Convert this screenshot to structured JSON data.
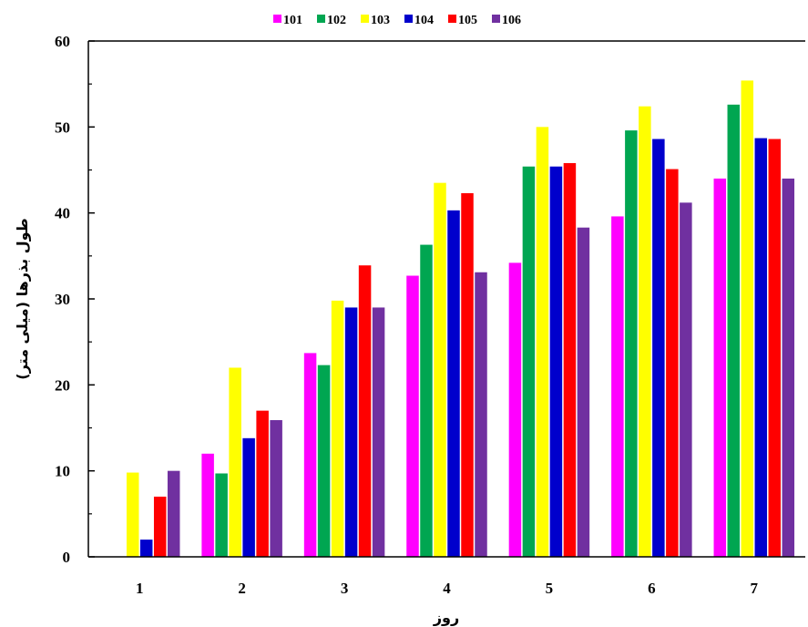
{
  "chart_data": {
    "type": "bar",
    "xlabel": "روز",
    "ylabel": "طول بذرها (میلی متر)",
    "ylim": [
      0,
      60
    ],
    "yticks": [
      0,
      10,
      20,
      30,
      40,
      50,
      60
    ],
    "categories": [
      "1",
      "2",
      "3",
      "4",
      "5",
      "6",
      "7"
    ],
    "legend_position": "top",
    "grid": false,
    "series": [
      {
        "name": "101",
        "color": "#ff00ff",
        "values": [
          0,
          12,
          23.7,
          32.7,
          34.2,
          39.6,
          44
        ]
      },
      {
        "name": "102",
        "color": "#00a651",
        "values": [
          0,
          9.7,
          22.3,
          36.3,
          45.4,
          49.6,
          52.6
        ]
      },
      {
        "name": "103",
        "color": "#ffff00",
        "values": [
          9.8,
          22,
          29.8,
          43.5,
          50,
          52.4,
          55.4
        ]
      },
      {
        "name": "104",
        "color": "#0000cc",
        "values": [
          2,
          13.8,
          29,
          40.3,
          45.4,
          48.6,
          48.7
        ]
      },
      {
        "name": "105",
        "color": "#ff0000",
        "values": [
          7,
          17,
          33.9,
          42.3,
          45.8,
          45.1,
          48.6
        ]
      },
      {
        "name": "106",
        "color": "#7030a0",
        "values": [
          10,
          15.9,
          29,
          33.1,
          38.3,
          41.2,
          44
        ]
      }
    ]
  }
}
